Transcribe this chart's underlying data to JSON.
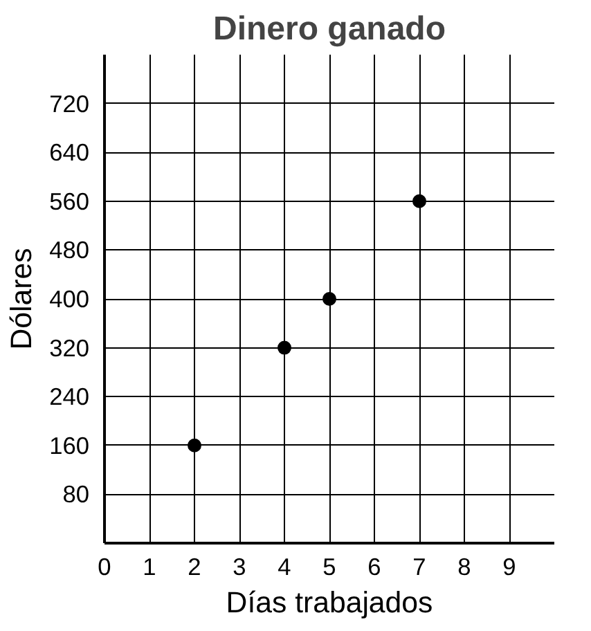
{
  "chart_data": {
    "type": "scatter",
    "title": "Dinero ganado",
    "xlabel": "Días trabajados",
    "ylabel": "Dólares",
    "x": [
      2,
      4,
      5,
      7
    ],
    "series": [
      {
        "color": "#000000",
        "values": [
          160,
          320,
          400,
          560
        ]
      }
    ],
    "xlim": [
      0,
      10
    ],
    "ylim": [
      0,
      800
    ],
    "xticks": [
      0,
      1,
      2,
      3,
      4,
      5,
      6,
      7,
      8,
      9
    ],
    "yticks": [
      80,
      160,
      240,
      320,
      400,
      480,
      560,
      640,
      720
    ],
    "grid": true,
    "marker": "circle"
  }
}
